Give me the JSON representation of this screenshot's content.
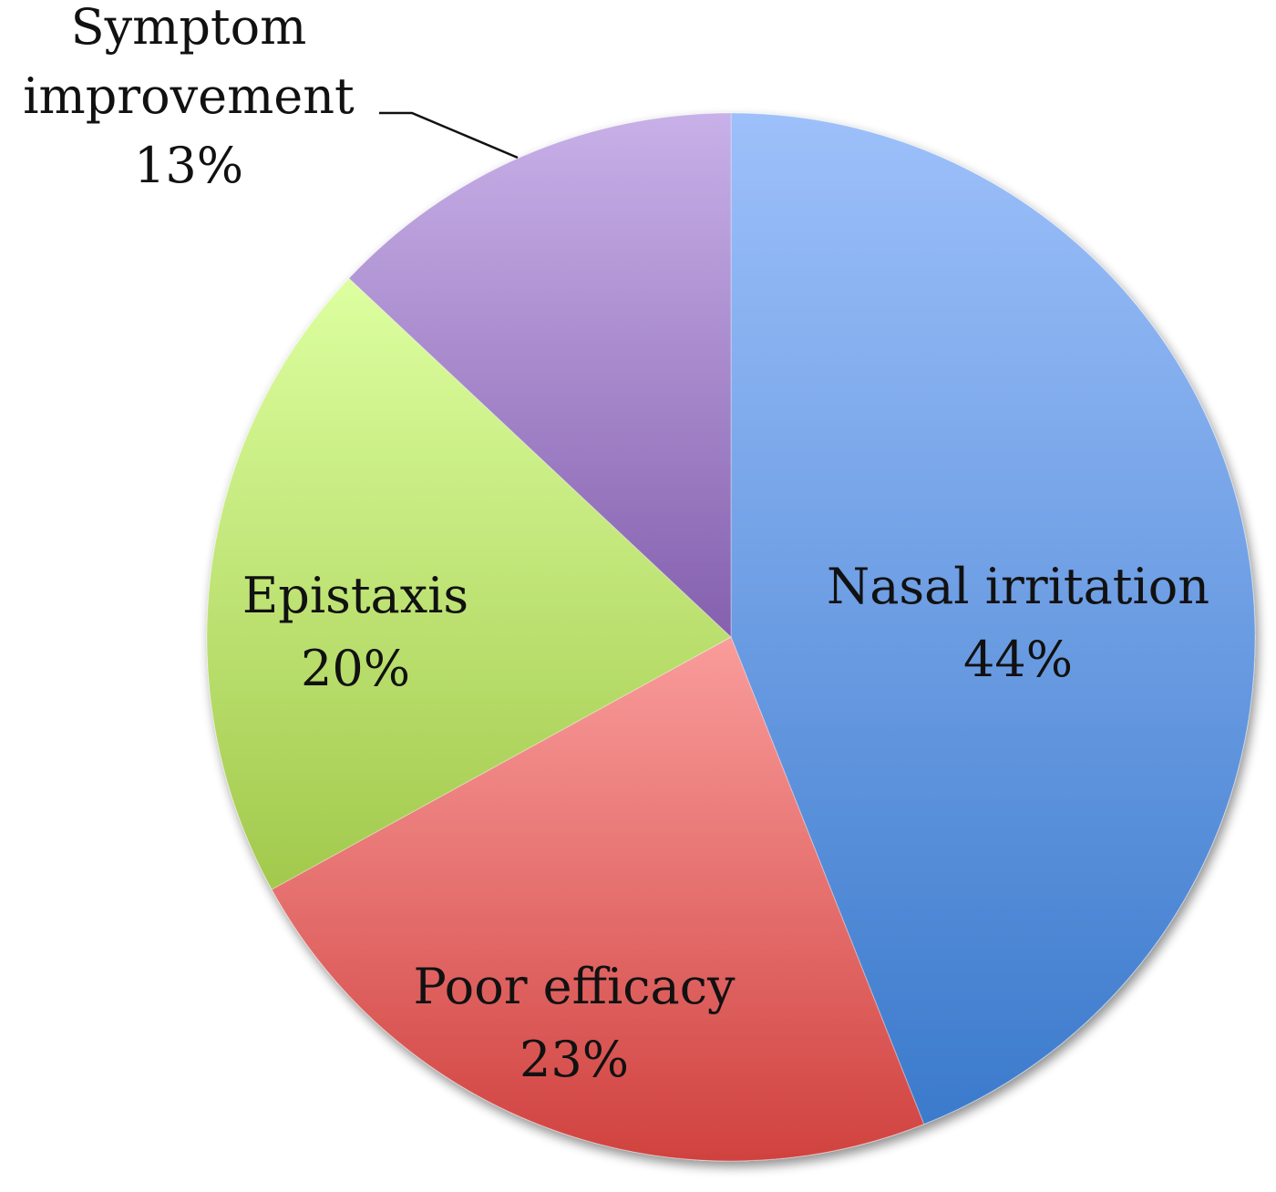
{
  "chart_data": {
    "type": "pie",
    "title": "",
    "categories": [
      "Nasal irritation",
      "Poor efficacy",
      "Epistaxis",
      "Symptom improvement"
    ],
    "values": [
      44,
      23,
      20,
      13
    ],
    "unit": "%",
    "start_angle_deg": 0,
    "direction": "clockwise",
    "legend": "none (data labels on slices)",
    "colors": {
      "Nasal irritation": {
        "light": "#9DC0FA",
        "dark": "#3B7ACC"
      },
      "Poor efficacy": {
        "light": "#F99C9B",
        "dark": "#D0423F"
      },
      "Epistaxis": {
        "light": "#DDFFA0",
        "dark": "#A2C94C"
      },
      "Symptom improvement": {
        "light": "#C8B0E8",
        "dark": "#8560AE"
      }
    }
  },
  "labels": [
    {
      "name": "Nasal irritation",
      "pct": "44%"
    },
    {
      "name": "Poor efficacy",
      "pct": "23%"
    },
    {
      "name": "Epistaxis",
      "pct": "20%"
    },
    {
      "name_line1": "Symptom",
      "name_line2": "improvement",
      "pct": "13%"
    }
  ]
}
